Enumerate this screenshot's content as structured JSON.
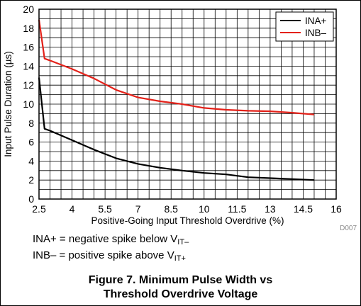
{
  "chart_data": {
    "type": "line",
    "xlabel": "Positive-Going Input Threshold Overdrive (%)",
    "ylabel": "Input Pulse Duration (µs)",
    "xlim": [
      2.5,
      16
    ],
    "ylim": [
      0,
      20
    ],
    "xticks": [
      "2.5",
      "4",
      "5.5",
      "7",
      "8.5",
      "10",
      "11.5",
      "13",
      "14.5",
      "16"
    ],
    "yticks": [
      "0",
      "2",
      "4",
      "6",
      "8",
      "10",
      "12",
      "14",
      "16",
      "18",
      "20"
    ],
    "grid": true,
    "legend_position": "top-right",
    "series": [
      {
        "name": "INA+",
        "color": "#000000",
        "points": [
          [
            2.5,
            12.8
          ],
          [
            2.75,
            7.4
          ],
          [
            3,
            7.2
          ],
          [
            4,
            6.2
          ],
          [
            5,
            5.2
          ],
          [
            6,
            4.3
          ],
          [
            6.5,
            4.0
          ],
          [
            7,
            3.7
          ],
          [
            8,
            3.3
          ],
          [
            9,
            3.0
          ],
          [
            10,
            2.75
          ],
          [
            11,
            2.6
          ],
          [
            12,
            2.3
          ],
          [
            13,
            2.2
          ],
          [
            14,
            2.1
          ],
          [
            15,
            2.0
          ]
        ]
      },
      {
        "name": "INB–",
        "color": "#e32119",
        "points": [
          [
            2.5,
            18.9
          ],
          [
            2.75,
            14.8
          ],
          [
            3,
            14.6
          ],
          [
            4,
            13.7
          ],
          [
            5,
            12.7
          ],
          [
            6,
            11.5
          ],
          [
            7,
            10.7
          ],
          [
            8,
            10.3
          ],
          [
            9,
            10.0
          ],
          [
            10,
            9.6
          ],
          [
            11,
            9.4
          ],
          [
            12,
            9.3
          ],
          [
            13,
            9.25
          ],
          [
            14,
            9.1
          ],
          [
            15,
            8.9
          ]
        ]
      }
    ],
    "annotation": "D007"
  },
  "notes": {
    "ina_prefix": "INA+ = negative spike below V",
    "ina_sub": "IT–",
    "inb_prefix": "INB– = positive spike above V",
    "inb_sub": "IT+"
  },
  "caption": {
    "line1": "Figure 7. Minimum Pulse Width vs",
    "line2": "Threshold Overdrive Voltage"
  }
}
